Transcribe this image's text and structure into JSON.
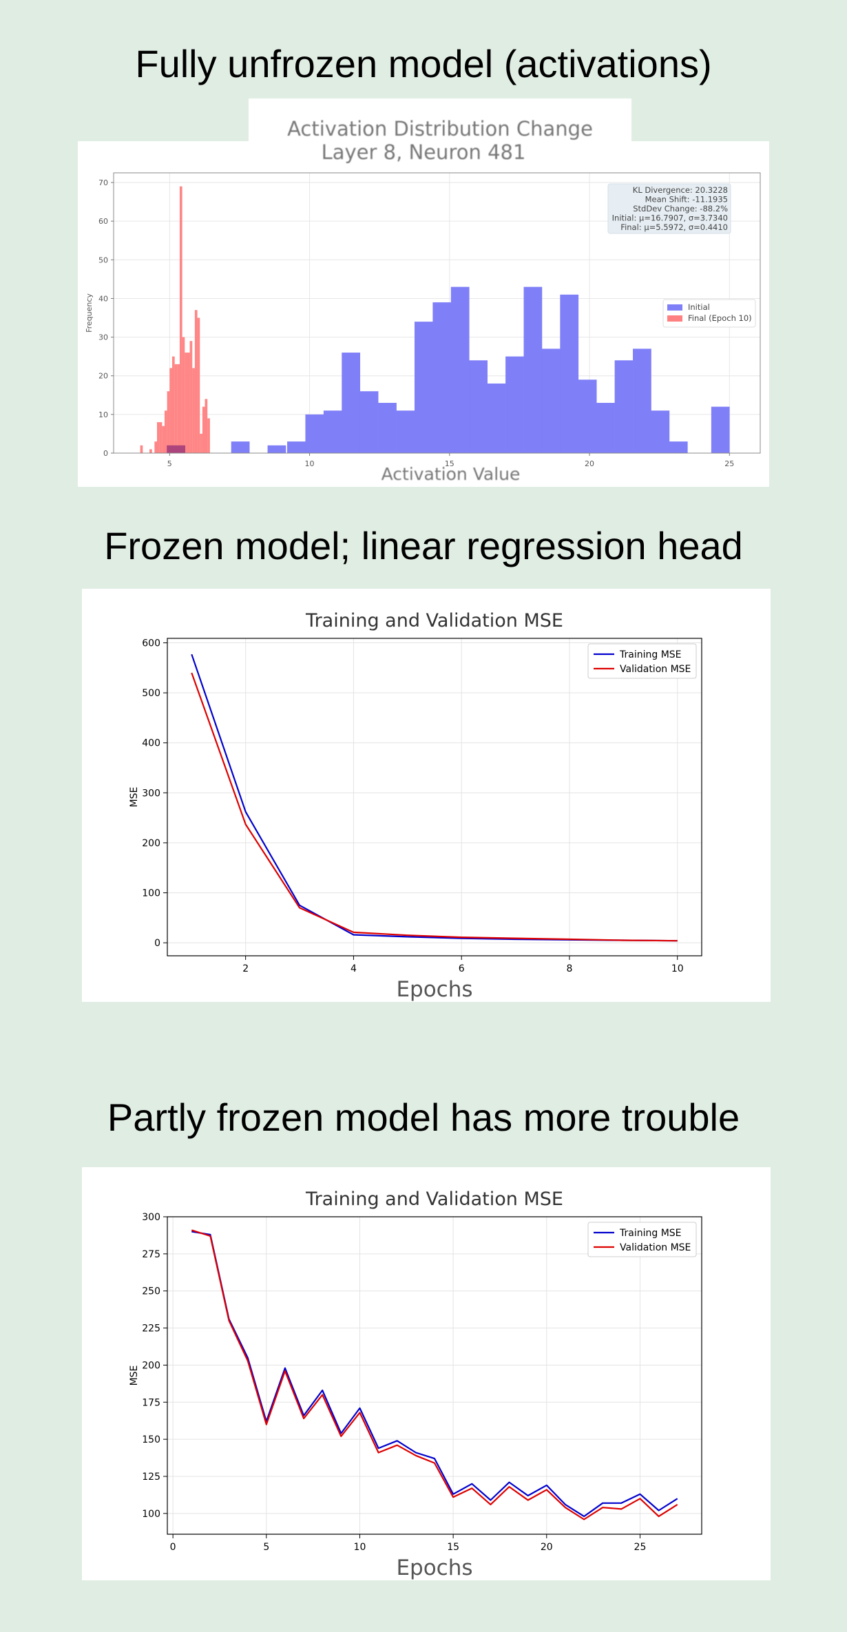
{
  "headings": {
    "section1": "Fully unfrozen model (activations)",
    "section2": "Frozen model; linear regression head",
    "section3": "Partly frozen model has more trouble"
  },
  "colors": {
    "background": "#e0ede3",
    "initial": "#7f7ff8",
    "final": "#ff8080",
    "training": "#0000cc",
    "validation": "#dd0000"
  },
  "chart_data": [
    {
      "type": "bar",
      "title_line1": "Activation Distribution Change",
      "title_line2": "Layer 8, Neuron 481",
      "xlabel": "Activation Value",
      "ylabel": "Frequency",
      "xlim": [
        3,
        26.1
      ],
      "ylim": [
        0,
        72.5
      ],
      "xticks": [
        5,
        10,
        15,
        20,
        25
      ],
      "yticks": [
        0,
        10,
        20,
        30,
        40,
        50,
        60,
        70
      ],
      "grid": true,
      "legend_position": "right",
      "stats": {
        "line1": "KL Divergence: 20.3228",
        "line2": "Mean Shift: -11.1935",
        "line3": "StdDev Change: -88.2%",
        "line4": "Initial: μ=16.7907, σ=3.7340",
        "line5": "Final: μ=5.5972, σ=0.4410"
      },
      "series": [
        {
          "name": "Initial",
          "bin_width": 0.658,
          "bins": [
            {
              "x": 4.9,
              "y": 2
            },
            {
              "x": 7.2,
              "y": 3
            },
            {
              "x": 8.5,
              "y": 2
            },
            {
              "x": 9.2,
              "y": 3
            },
            {
              "x": 9.85,
              "y": 10
            },
            {
              "x": 10.5,
              "y": 11
            },
            {
              "x": 11.15,
              "y": 26
            },
            {
              "x": 11.8,
              "y": 16
            },
            {
              "x": 12.45,
              "y": 13
            },
            {
              "x": 13.1,
              "y": 11
            },
            {
              "x": 13.75,
              "y": 34
            },
            {
              "x": 14.4,
              "y": 39
            },
            {
              "x": 15.05,
              "y": 43
            },
            {
              "x": 15.7,
              "y": 24
            },
            {
              "x": 16.35,
              "y": 18
            },
            {
              "x": 17.0,
              "y": 25
            },
            {
              "x": 17.65,
              "y": 43
            },
            {
              "x": 18.3,
              "y": 27
            },
            {
              "x": 18.95,
              "y": 41
            },
            {
              "x": 19.6,
              "y": 19
            },
            {
              "x": 20.25,
              "y": 13
            },
            {
              "x": 20.9,
              "y": 24
            },
            {
              "x": 21.55,
              "y": 27
            },
            {
              "x": 22.2,
              "y": 11
            },
            {
              "x": 22.85,
              "y": 3
            },
            {
              "x": 24.35,
              "y": 12
            }
          ]
        },
        {
          "name": "Final (Epoch 10)",
          "bin_width": 0.0915,
          "bins": [
            {
              "x": 3.95,
              "y": 2
            },
            {
              "x": 4.28,
              "y": 1
            },
            {
              "x": 4.46,
              "y": 3
            },
            {
              "x": 4.55,
              "y": 8
            },
            {
              "x": 4.64,
              "y": 8
            },
            {
              "x": 4.73,
              "y": 7
            },
            {
              "x": 4.82,
              "y": 11
            },
            {
              "x": 4.91,
              "y": 16
            },
            {
              "x": 5.0,
              "y": 22
            },
            {
              "x": 5.09,
              "y": 25
            },
            {
              "x": 5.18,
              "y": 23
            },
            {
              "x": 5.27,
              "y": 23
            },
            {
              "x": 5.36,
              "y": 69
            },
            {
              "x": 5.45,
              "y": 30
            },
            {
              "x": 5.54,
              "y": 26
            },
            {
              "x": 5.63,
              "y": 26
            },
            {
              "x": 5.72,
              "y": 29
            },
            {
              "x": 5.81,
              "y": 22
            },
            {
              "x": 5.9,
              "y": 37
            },
            {
              "x": 5.99,
              "y": 35
            },
            {
              "x": 6.08,
              "y": 5
            },
            {
              "x": 6.17,
              "y": 12
            },
            {
              "x": 6.26,
              "y": 14
            },
            {
              "x": 6.35,
              "y": 9
            }
          ]
        }
      ]
    },
    {
      "type": "line",
      "title": "Training and Validation MSE",
      "xlabel": "Epochs",
      "ylabel": "MSE",
      "xlim": [
        0.55,
        10.45
      ],
      "ylim": [
        -26,
        609
      ],
      "xticks": [
        2,
        4,
        6,
        8,
        10
      ],
      "yticks": [
        0,
        100,
        200,
        300,
        400,
        500,
        600
      ],
      "grid": true,
      "legend_position": "top-right",
      "x": [
        1,
        2,
        3,
        4,
        5,
        6,
        7,
        8,
        9,
        10
      ],
      "series": [
        {
          "name": "Training MSE",
          "values": [
            577,
            262,
            75,
            16,
            12,
            9,
            7,
            6,
            5,
            4
          ]
        },
        {
          "name": "Validation MSE",
          "values": [
            540,
            237,
            70,
            21,
            15,
            11,
            9,
            7,
            5,
            4
          ]
        }
      ]
    },
    {
      "type": "line",
      "title": "Training and Validation MSE",
      "xlabel": "Epochs",
      "ylabel": "MSE",
      "xlim": [
        -0.3,
        28.3
      ],
      "ylim": [
        86,
        300
      ],
      "xticks": [
        0,
        5,
        10,
        15,
        20,
        25
      ],
      "yticks": [
        100,
        125,
        150,
        175,
        200,
        225,
        250,
        275,
        300
      ],
      "grid": true,
      "legend_position": "top-right",
      "x": [
        1,
        2,
        3,
        4,
        5,
        6,
        7,
        8,
        9,
        10,
        11,
        12,
        13,
        14,
        15,
        16,
        17,
        18,
        19,
        20,
        21,
        22,
        23,
        24,
        25,
        26,
        27
      ],
      "series": [
        {
          "name": "Training MSE",
          "values": [
            290,
            288,
            231,
            205,
            162,
            198,
            166,
            183,
            154,
            171,
            144,
            149,
            141,
            137,
            113,
            120,
            109,
            121,
            112,
            119,
            106,
            98,
            107,
            107,
            113,
            102,
            110
          ]
        },
        {
          "name": "Validation MSE",
          "values": [
            291,
            287,
            230,
            203,
            160,
            196,
            164,
            180,
            152,
            168,
            141,
            146,
            139,
            134,
            111,
            117,
            106,
            118,
            109,
            116,
            104,
            96,
            104,
            103,
            110,
            98,
            106
          ]
        }
      ]
    }
  ]
}
